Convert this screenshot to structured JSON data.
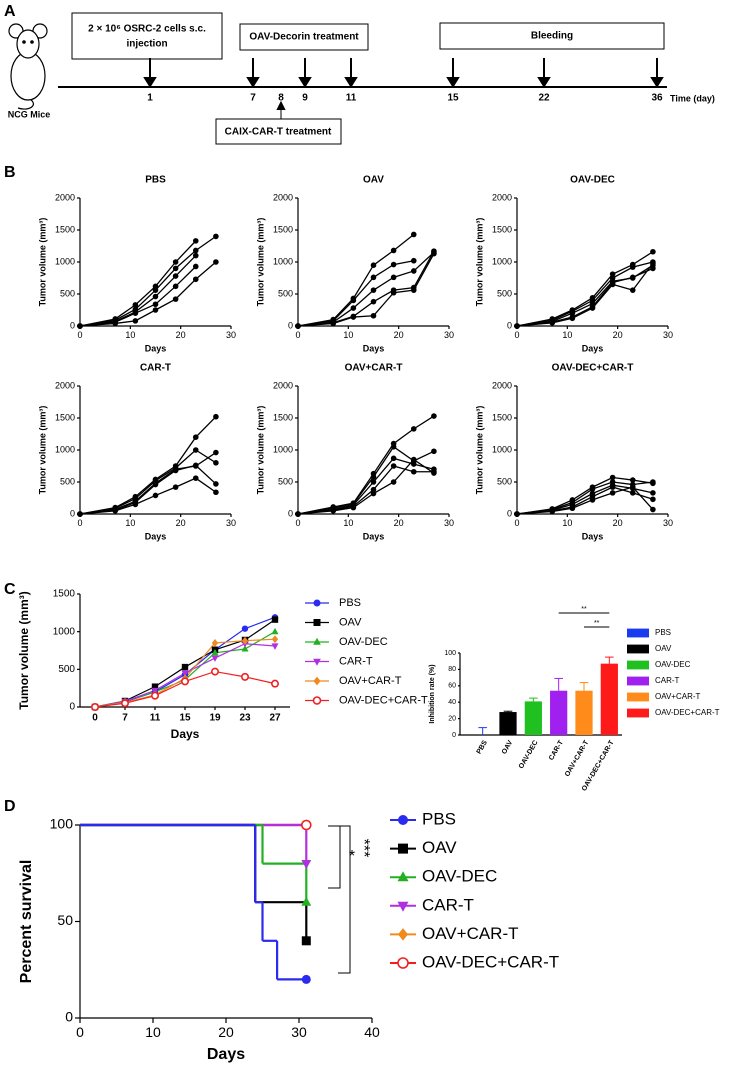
{
  "panel_labels": [
    "A",
    "B",
    "C",
    "D"
  ],
  "timeline": {
    "subject": "NCG Mice",
    "injection": [
      "2 × 10⁶ OSRC-2 cells s.c.",
      "injection"
    ],
    "virus": "OAV-Decorin treatment",
    "bleeding": "Bleeding",
    "car_t": "CAIX-CAR-T treatment",
    "days": [
      1,
      7,
      8,
      9,
      11,
      15,
      22,
      36
    ],
    "axis_label": "Time (day)"
  },
  "chart_data": [
    {
      "type": "line",
      "title": "PBS",
      "x": [
        0,
        7,
        11,
        15,
        19,
        23,
        27
      ],
      "xlim": [
        0,
        30
      ],
      "xticks": [
        0,
        10,
        20,
        30
      ],
      "ylim": [
        0,
        2000
      ],
      "yticks": [
        0,
        500,
        1000,
        1500,
        2000
      ],
      "xlabel": "Days",
      "ylabel": "Tumor volume (mm³)",
      "marker": "circle",
      "series": [
        {
          "color": "#000000",
          "values": [
            0,
            110,
            330,
            620,
            1000,
            1330,
            null
          ]
        },
        {
          "color": "#000000",
          "values": [
            0,
            90,
            260,
            560,
            900,
            1180,
            1400
          ]
        },
        {
          "color": "#000000",
          "values": [
            0,
            70,
            220,
            460,
            780,
            1100,
            null
          ]
        },
        {
          "color": "#000000",
          "values": [
            0,
            60,
            200,
            340,
            620,
            930,
            null
          ]
        },
        {
          "color": "#000000",
          "values": [
            0,
            40,
            80,
            250,
            420,
            730,
            1000
          ]
        }
      ]
    },
    {
      "type": "line",
      "title": "OAV",
      "x": [
        0,
        7,
        11,
        15,
        19,
        23,
        27
      ],
      "xlim": [
        0,
        30
      ],
      "xticks": [
        0,
        10,
        20,
        30
      ],
      "ylim": [
        0,
        2000
      ],
      "yticks": [
        0,
        500,
        1000,
        1500,
        2000
      ],
      "xlabel": "Days",
      "ylabel": "Tumor volume (mm³)",
      "marker": "circle",
      "series": [
        {
          "color": "#000000",
          "values": [
            0,
            100,
            430,
            950,
            1180,
            1430,
            null
          ]
        },
        {
          "color": "#000000",
          "values": [
            0,
            80,
            400,
            760,
            960,
            1020,
            null
          ]
        },
        {
          "color": "#000000",
          "values": [
            0,
            60,
            280,
            560,
            760,
            860,
            1150
          ]
        },
        {
          "color": "#000000",
          "values": [
            0,
            50,
            150,
            380,
            560,
            600,
            1170
          ]
        },
        {
          "color": "#000000",
          "values": [
            0,
            40,
            140,
            160,
            520,
            560,
            1130
          ]
        }
      ]
    },
    {
      "type": "line",
      "title": "OAV-DEC",
      "x": [
        0,
        7,
        11,
        15,
        19,
        23,
        27
      ],
      "xlim": [
        0,
        30
      ],
      "xticks": [
        0,
        10,
        20,
        30
      ],
      "ylim": [
        0,
        2000
      ],
      "yticks": [
        0,
        500,
        1000,
        1500,
        2000
      ],
      "xlabel": "Days",
      "ylabel": "Tumor volume (mm³)",
      "marker": "circle",
      "series": [
        {
          "color": "#000000",
          "values": [
            0,
            110,
            250,
            440,
            810,
            960,
            1160
          ]
        },
        {
          "color": "#000000",
          "values": [
            0,
            90,
            230,
            400,
            750,
            920,
            1000
          ]
        },
        {
          "color": "#000000",
          "values": [
            0,
            70,
            200,
            350,
            700,
            750,
            950
          ]
        },
        {
          "color": "#000000",
          "values": [
            0,
            60,
            140,
            300,
            680,
            760,
            900
          ]
        },
        {
          "color": "#000000",
          "values": [
            0,
            50,
            120,
            280,
            650,
            560,
            980
          ]
        }
      ]
    },
    {
      "type": "line",
      "title": "CAR-T",
      "x": [
        0,
        7,
        11,
        15,
        19,
        23,
        27
      ],
      "xlim": [
        0,
        30
      ],
      "xticks": [
        0,
        10,
        20,
        30
      ],
      "ylim": [
        0,
        2000
      ],
      "yticks": [
        0,
        500,
        1000,
        1500,
        2000
      ],
      "xlabel": "Days",
      "ylabel": "Tumor volume (mm³)",
      "marker": "circle",
      "series": [
        {
          "color": "#000000",
          "values": [
            0,
            100,
            270,
            540,
            750,
            1200,
            1520
          ]
        },
        {
          "color": "#000000",
          "values": [
            0,
            90,
            240,
            520,
            720,
            1000,
            800
          ]
        },
        {
          "color": "#000000",
          "values": [
            0,
            70,
            200,
            480,
            700,
            750,
            960
          ]
        },
        {
          "color": "#000000",
          "values": [
            0,
            60,
            180,
            460,
            680,
            760,
            470
          ]
        },
        {
          "color": "#000000",
          "values": [
            0,
            50,
            150,
            290,
            420,
            560,
            340
          ]
        }
      ]
    },
    {
      "type": "line",
      "title": "OAV+CAR-T",
      "x": [
        0,
        7,
        11,
        15,
        19,
        23,
        27
      ],
      "xlim": [
        0,
        30
      ],
      "xticks": [
        0,
        10,
        20,
        30
      ],
      "ylim": [
        0,
        2000
      ],
      "yticks": [
        0,
        500,
        1000,
        1500,
        2000
      ],
      "xlabel": "Days",
      "ylabel": "Tumor volume (mm³)",
      "marker": "circle",
      "series": [
        {
          "color": "#000000",
          "values": [
            0,
            110,
            170,
            630,
            1100,
            1330,
            1530
          ]
        },
        {
          "color": "#000000",
          "values": [
            0,
            90,
            160,
            580,
            1050,
            830,
            980
          ]
        },
        {
          "color": "#000000",
          "values": [
            0,
            70,
            140,
            500,
            870,
            780,
            700
          ]
        },
        {
          "color": "#000000",
          "values": [
            0,
            60,
            120,
            380,
            750,
            660,
            660
          ]
        },
        {
          "color": "#000000",
          "values": [
            0,
            50,
            100,
            320,
            500,
            850,
            640
          ]
        }
      ]
    },
    {
      "type": "line",
      "title": "OAV-DEC+CAR-T",
      "x": [
        0,
        7,
        11,
        15,
        19,
        23,
        27
      ],
      "xlim": [
        0,
        30
      ],
      "xticks": [
        0,
        10,
        20,
        30
      ],
      "ylim": [
        0,
        2000
      ],
      "yticks": [
        0,
        500,
        1000,
        1500,
        2000
      ],
      "xlabel": "Days",
      "ylabel": "Tumor volume (mm³)",
      "marker": "circle",
      "series": [
        {
          "color": "#000000",
          "values": [
            0,
            80,
            220,
            420,
            570,
            530,
            480
          ]
        },
        {
          "color": "#000000",
          "values": [
            0,
            70,
            180,
            390,
            500,
            460,
            500
          ]
        },
        {
          "color": "#000000",
          "values": [
            0,
            60,
            150,
            320,
            450,
            400,
            330
          ]
        },
        {
          "color": "#000000",
          "values": [
            0,
            50,
            110,
            270,
            420,
            330,
            230
          ]
        },
        {
          "color": "#000000",
          "values": [
            0,
            40,
            90,
            220,
            330,
            420,
            70
          ]
        }
      ]
    },
    {
      "type": "line",
      "categories": [
        "0",
        "7",
        "11",
        "15",
        "19",
        "23",
        "27"
      ],
      "ylim": [
        0,
        1500
      ],
      "yticks": [
        0,
        500,
        1000,
        1500
      ],
      "xlabel": "Days",
      "ylabel": "Tumor volume (mm³)",
      "legend": "right",
      "series": [
        {
          "name": "PBS",
          "color": "#2a2af0",
          "marker": "circle",
          "values": [
            0,
            70,
            200,
            430,
            760,
            1040,
            1190
          ]
        },
        {
          "name": "OAV",
          "color": "#000000",
          "marker": "square",
          "values": [
            0,
            80,
            270,
            530,
            760,
            890,
            1160
          ]
        },
        {
          "name": "OAV-DEC",
          "color": "#22b022",
          "marker": "triangle",
          "values": [
            0,
            80,
            200,
            360,
            720,
            770,
            1000
          ]
        },
        {
          "name": "CAR-T",
          "color": "#b030e0",
          "marker": "triangle-down",
          "values": [
            0,
            75,
            220,
            450,
            650,
            840,
            810
          ]
        },
        {
          "name": "OAV+CAR-T",
          "color": "#f08a1c",
          "marker": "diamond",
          "values": [
            0,
            60,
            160,
            380,
            850,
            880,
            900
          ]
        },
        {
          "name": "OAV-DEC+CAR-T",
          "color": "#f02020",
          "marker": "circle-open",
          "values": [
            0,
            50,
            150,
            340,
            470,
            400,
            310
          ]
        }
      ]
    },
    {
      "type": "bar",
      "categories": [
        "PBS",
        "OAV",
        "OAV-DEC",
        "CAR-T",
        "OAV+CAR-T",
        "OAV-DEC+CAR-T"
      ],
      "values": [
        0,
        28,
        41,
        54,
        54,
        87
      ],
      "errors": [
        9,
        1,
        4,
        15,
        10,
        8
      ],
      "colors": [
        "#1a3cf0",
        "#000000",
        "#20c020",
        "#a020f0",
        "#ff8c1a",
        "#ff1a1a"
      ],
      "ylim": [
        0,
        100
      ],
      "yticks": [
        0,
        20,
        40,
        60,
        80,
        100
      ],
      "ylabel": "Inhibition rate (%)",
      "legend": "right",
      "annotations": [
        "**",
        "**"
      ]
    },
    {
      "type": "survival",
      "xlim": [
        0,
        40
      ],
      "xticks": [
        0,
        10,
        20,
        30,
        40
      ],
      "ylim": [
        0,
        100
      ],
      "yticks": [
        0,
        50,
        100
      ],
      "xlabel": "Days",
      "ylabel": "Percent survival",
      "legend": "right",
      "annotations": [
        "*",
        "***"
      ],
      "series": [
        {
          "name": "PBS",
          "color": "#2a2af0",
          "marker": "circle",
          "x": [
            0,
            24,
            25,
            27,
            31
          ],
          "values": [
            100,
            60,
            40,
            20,
            20
          ]
        },
        {
          "name": "OAV",
          "color": "#000000",
          "marker": "square",
          "x": [
            0,
            24,
            31
          ],
          "values": [
            100,
            60,
            40
          ]
        },
        {
          "name": "OAV-DEC",
          "color": "#22b022",
          "marker": "triangle",
          "x": [
            0,
            25,
            31
          ],
          "values": [
            100,
            80,
            60
          ]
        },
        {
          "name": "CAR-T",
          "color": "#b030e0",
          "marker": "triangle-down",
          "x": [
            0,
            31
          ],
          "values": [
            100,
            80
          ]
        },
        {
          "name": "OAV+CAR-T",
          "color": "#f08a1c",
          "marker": "diamond",
          "x": [
            0,
            31
          ],
          "values": [
            100,
            100
          ]
        },
        {
          "name": "OAV-DEC+CAR-T",
          "color": "#f02020",
          "marker": "circle-open",
          "x": [
            0,
            31
          ],
          "values": [
            100,
            100
          ]
        }
      ]
    }
  ]
}
